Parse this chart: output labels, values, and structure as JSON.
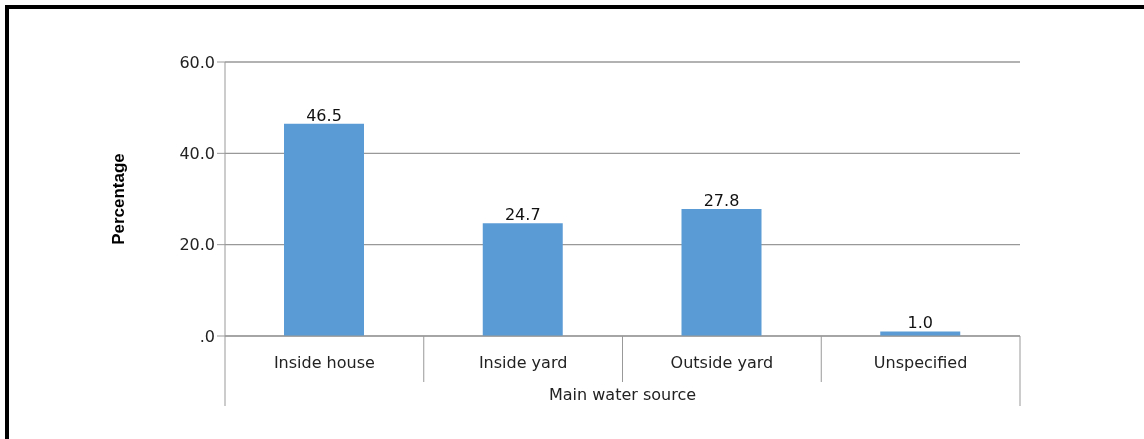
{
  "chart_data": {
    "type": "bar",
    "xlabel": "Main water source",
    "ylabel": "Percentage",
    "categories": [
      "Inside house",
      "Inside yard",
      "Outside yard",
      "Unspecified"
    ],
    "values": [
      46.5,
      24.7,
      27.8,
      1.0
    ],
    "value_labels": [
      "46.5",
      "24.7",
      "27.8",
      "1.0"
    ],
    "color": "#5b9bd5",
    "ylim": [
      0,
      60
    ],
    "yticks": [
      {
        "value": 0,
        "label": ".0"
      },
      {
        "value": 20,
        "label": "20.0"
      },
      {
        "value": 40,
        "label": "40.0"
      },
      {
        "value": 60,
        "label": "60.0"
      }
    ],
    "grid": "y"
  }
}
